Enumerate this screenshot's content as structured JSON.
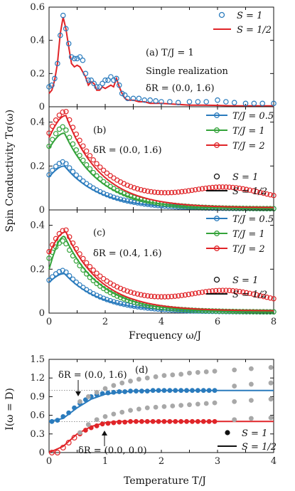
{
  "figure": {
    "ylabel": "Spin Conductivity Tσ(ω)",
    "xlabel_freq": "Frequency ω/J",
    "xlabel_temp": "Temperature T/J",
    "ylabel_d": "I(ω = D)"
  },
  "colors": {
    "blue": "#2a7bbd",
    "green": "#34a33a",
    "red": "#e02428",
    "gray": "#a8a8a8",
    "black": "#111111"
  },
  "chart_data": [
    {
      "id": "a",
      "type": "line",
      "panel_label": "(a)",
      "annotations": [
        "(a) T/J = 1",
        "Single realization",
        "δR = (0.0, 1.6)"
      ],
      "xlim": [
        0,
        8
      ],
      "ylim": [
        0,
        0.6
      ],
      "yticks": [
        0,
        0.2,
        0.4,
        0.6
      ],
      "xticks": [],
      "legend": [
        {
          "label": "S = 1",
          "marker": "circle"
        },
        {
          "label": "S = 1/2",
          "marker": "line"
        }
      ],
      "legend_position": "top-right",
      "series": [
        {
          "name": "S = 1/2",
          "color": "red",
          "style": "line",
          "x": [
            0,
            0.1,
            0.2,
            0.3,
            0.4,
            0.5,
            0.6,
            0.7,
            0.8,
            0.9,
            1.0,
            1.1,
            1.2,
            1.3,
            1.4,
            1.5,
            1.6,
            1.7,
            1.8,
            1.9,
            2.0,
            2.1,
            2.2,
            2.3,
            2.4,
            2.5,
            2.6,
            2.7,
            2.8,
            3.0,
            3.2,
            3.4,
            3.6,
            4.0,
            4.5,
            5.0,
            5.5,
            6.0,
            6.5,
            7.0,
            7.5,
            8.0
          ],
          "y": [
            0.08,
            0.1,
            0.16,
            0.26,
            0.44,
            0.54,
            0.47,
            0.36,
            0.26,
            0.24,
            0.25,
            0.24,
            0.21,
            0.18,
            0.13,
            0.15,
            0.14,
            0.1,
            0.1,
            0.12,
            0.11,
            0.12,
            0.13,
            0.12,
            0.17,
            0.12,
            0.08,
            0.05,
            0.04,
            0.04,
            0.03,
            0.03,
            0.02,
            0.02,
            0.015,
            0.01,
            0.01,
            0.008,
            0.005,
            0.005,
            0.005,
            0.005
          ]
        },
        {
          "name": "S = 1",
          "color": "blue",
          "style": "circles",
          "x": [
            0,
            0.1,
            0.2,
            0.3,
            0.4,
            0.5,
            0.6,
            0.7,
            0.8,
            0.9,
            1.0,
            1.1,
            1.2,
            1.3,
            1.4,
            1.5,
            1.6,
            1.7,
            1.8,
            1.9,
            2.0,
            2.1,
            2.2,
            2.3,
            2.4,
            2.5,
            2.6,
            2.7,
            2.8,
            3.0,
            3.2,
            3.4,
            3.6,
            3.8,
            4.0,
            4.3,
            4.6,
            5.0,
            5.3,
            5.6,
            6.0,
            6.3,
            6.6,
            7.0,
            7.3,
            7.6,
            8.0
          ],
          "y": [
            0.12,
            0.13,
            0.17,
            0.26,
            0.43,
            0.55,
            0.47,
            0.38,
            0.3,
            0.29,
            0.29,
            0.3,
            0.28,
            0.2,
            0.16,
            0.16,
            0.14,
            0.12,
            0.12,
            0.14,
            0.16,
            0.16,
            0.18,
            0.16,
            0.17,
            0.13,
            0.08,
            0.07,
            0.05,
            0.05,
            0.05,
            0.04,
            0.04,
            0.035,
            0.03,
            0.03,
            0.025,
            0.03,
            0.03,
            0.03,
            0.04,
            0.03,
            0.025,
            0.02,
            0.02,
            0.02,
            0.02
          ]
        }
      ]
    },
    {
      "id": "b",
      "type": "line",
      "panel_label": "(b)",
      "annotations": [
        "(b)",
        "δR = (0.0, 1.6)"
      ],
      "xlim": [
        0,
        8
      ],
      "ylim": [
        0,
        0.47
      ],
      "yticks": [
        0,
        0.2,
        0.4
      ],
      "xticks": [],
      "legend": [
        {
          "label": "T/J = 0.5",
          "color": "blue"
        },
        {
          "label": "T/J = 1",
          "color": "green"
        },
        {
          "label": "T/J = 2",
          "color": "red"
        },
        {
          "label": "S = 1",
          "marker": "circle"
        },
        {
          "label": "S = 1/2",
          "marker": "line"
        }
      ],
      "legend_position": "top-right",
      "series": [
        {
          "name": "T/J = 0.5",
          "color": "blue",
          "peak_x": 0.55,
          "y0_line": 0.15,
          "peak_line": 0.2,
          "tail_line": 0.005,
          "y0_pts": 0.16,
          "peak_pts": 0.22,
          "tail_pts": 0.005,
          "hump": 0
        },
        {
          "name": "T/J = 1",
          "color": "green",
          "peak_x": 0.55,
          "y0_line": 0.28,
          "peak_line": 0.35,
          "tail_line": 0.005,
          "y0_pts": 0.29,
          "peak_pts": 0.38,
          "tail_pts": 0.005,
          "hump": 0
        },
        {
          "name": "T/J = 2",
          "color": "red",
          "peak_x": 0.6,
          "y0_line": 0.33,
          "peak_line": 0.43,
          "tail_line": 0.01,
          "y0_pts": 0.35,
          "peak_pts": 0.45,
          "tail_pts": 0.04,
          "hump": 0.06
        }
      ]
    },
    {
      "id": "c",
      "type": "line",
      "panel_label": "(c)",
      "annotations": [
        "(c)",
        "δR = (0.4, 1.6)"
      ],
      "xlim": [
        0,
        8
      ],
      "ylim": [
        0,
        0.47
      ],
      "yticks": [
        0,
        0.2,
        0.4
      ],
      "xticks": [
        0,
        2,
        4,
        6,
        8
      ],
      "legend": [
        {
          "label": "T/J = 0.5",
          "color": "blue"
        },
        {
          "label": "T/J = 1",
          "color": "green"
        },
        {
          "label": "T/J = 2",
          "color": "red"
        },
        {
          "label": "S = 1",
          "marker": "circle"
        },
        {
          "label": "S = 1/2",
          "marker": "line"
        }
      ],
      "legend_position": "top-right",
      "series": [
        {
          "name": "T/J = 0.5",
          "color": "blue",
          "peak_x": 0.55,
          "y0_line": 0.14,
          "peak_line": 0.18,
          "tail_line": 0.005,
          "y0_pts": 0.15,
          "peak_pts": 0.195,
          "tail_pts": 0.005,
          "hump": 0
        },
        {
          "name": "T/J = 1",
          "color": "green",
          "peak_x": 0.55,
          "y0_line": 0.2,
          "peak_line": 0.35,
          "tail_line": 0.005,
          "y0_pts": 0.25,
          "peak_pts": 0.33,
          "tail_pts": 0.005,
          "hump": 0
        },
        {
          "name": "T/J = 2",
          "color": "red",
          "peak_x": 0.6,
          "y0_line": 0.27,
          "peak_line": 0.37,
          "tail_line": 0.01,
          "y0_pts": 0.28,
          "peak_pts": 0.38,
          "tail_pts": 0.04,
          "hump": 0.06
        }
      ]
    },
    {
      "id": "d",
      "type": "scatter",
      "panel_label": "(d)",
      "annotations": [
        "(d)",
        "δR = (0.0, 1.6)",
        "δR = (0.0, 0.0)"
      ],
      "xlim": [
        0,
        4
      ],
      "ylim": [
        0,
        1.5
      ],
      "yticks": [
        0,
        0.3,
        0.6,
        0.9,
        1.2,
        1.5
      ],
      "xticks": [
        0,
        1,
        2,
        3,
        4
      ],
      "reference_lines_y": [
        0.5,
        1.0
      ],
      "legend": [
        {
          "label": "S = 1",
          "marker": "filled-circle"
        },
        {
          "label": "S = 1/2",
          "marker": "line"
        }
      ],
      "legend_position": "bottom-right",
      "series": [
        {
          "name": "S = 1/2",
          "group": "δR = (0.0, 1.6)",
          "color": "blue",
          "style": "line",
          "x": [
            0,
            0.25,
            0.5,
            0.75,
            1.0,
            1.25,
            1.5,
            1.75,
            2.0,
            2.5,
            3.0,
            3.5,
            4.0
          ],
          "y": [
            0.5,
            0.55,
            0.72,
            0.86,
            0.94,
            0.97,
            0.99,
            0.995,
            1.0,
            1.0,
            1.0,
            1.0,
            1.0
          ]
        },
        {
          "name": "S = 1",
          "group": "δR = (0.0, 1.6)",
          "color": "blue",
          "style": "dots",
          "x": [
            0.05,
            0.15,
            0.25,
            0.35,
            0.45,
            0.55,
            0.65,
            0.75,
            0.85,
            0.95,
            1.05,
            1.15,
            1.25,
            1.35,
            1.45,
            1.55,
            1.65,
            1.75,
            1.85,
            1.95,
            2.05,
            2.15,
            2.25,
            2.35,
            2.45,
            2.55,
            2.65,
            2.75,
            2.85,
            2.95
          ],
          "y": [
            0.5,
            0.52,
            0.58,
            0.64,
            0.72,
            0.79,
            0.85,
            0.9,
            0.93,
            0.95,
            0.96,
            0.97,
            0.98,
            0.98,
            0.99,
            0.99,
            0.99,
            0.99,
            1.0,
            1.0,
            1.0,
            1.0,
            1.0,
            1.0,
            1.0,
            1.0,
            1.0,
            1.0,
            1.0,
            1.0
          ]
        },
        {
          "name": "",
          "group": "δR = (0.0, 1.6)",
          "color": "gray",
          "style": "dots",
          "x": [
            0.55,
            0.7,
            0.85,
            1.0,
            1.15,
            1.3,
            1.45,
            1.6,
            1.75,
            1.9,
            2.05,
            2.2,
            2.35,
            2.5,
            2.65,
            2.8,
            2.95,
            3.3,
            3.6,
            3.95
          ],
          "y": [
            0.82,
            0.9,
            0.97,
            1.03,
            1.08,
            1.12,
            1.15,
            1.18,
            1.2,
            1.22,
            1.24,
            1.25,
            1.26,
            1.28,
            1.29,
            1.3,
            1.31,
            1.33,
            1.35,
            1.37
          ]
        },
        {
          "name": "",
          "group": "δR = (0.0, 1.6)",
          "color": "gray",
          "style": "dots",
          "x": [
            3.3,
            3.6,
            3.95
          ],
          "y": [
            1.07,
            1.1,
            1.12
          ]
        },
        {
          "name": "S = 1/2",
          "group": "δR = (0.0, 0.0)",
          "color": "red",
          "style": "line",
          "x": [
            0,
            0.25,
            0.5,
            0.75,
            1.0,
            1.25,
            1.5,
            1.75,
            2.0,
            2.5,
            3.0,
            3.5,
            4.0
          ],
          "y": [
            0.0,
            0.1,
            0.3,
            0.42,
            0.48,
            0.5,
            0.5,
            0.5,
            0.5,
            0.5,
            0.5,
            0.5,
            0.5
          ]
        },
        {
          "name": "S = 1",
          "group": "δR = (0.0, 0.0)",
          "color": "red",
          "style": "dots",
          "x": [
            0.55,
            0.65,
            0.75,
            0.85,
            0.95,
            1.05,
            1.15,
            1.25,
            1.35,
            1.45,
            1.55,
            1.65,
            1.75,
            1.85,
            1.95,
            2.05,
            2.15,
            2.25,
            2.35,
            2.45,
            2.55,
            2.65,
            2.75,
            2.85,
            2.95
          ],
          "y": [
            0.3,
            0.36,
            0.4,
            0.43,
            0.46,
            0.47,
            0.48,
            0.49,
            0.49,
            0.5,
            0.5,
            0.5,
            0.5,
            0.5,
            0.5,
            0.5,
            0.5,
            0.5,
            0.5,
            0.5,
            0.5,
            0.5,
            0.5,
            0.5,
            0.5
          ]
        },
        {
          "name": "",
          "group": "δR = (0.0, 0.0)",
          "color": "red",
          "style": "open-circles",
          "x": [
            0.05,
            0.15,
            0.25,
            0.35,
            0.45
          ],
          "y": [
            0.0,
            0.0,
            0.08,
            0.16,
            0.24
          ]
        },
        {
          "name": "",
          "group": "δR = (0.0, 0.0)",
          "color": "gray",
          "style": "dots",
          "x": [
            0.55,
            0.7,
            0.85,
            1.0,
            1.15,
            1.3,
            1.45,
            1.6,
            1.75,
            1.9,
            2.05,
            2.2,
            2.35,
            2.5,
            2.65,
            2.8,
            2.95,
            3.3,
            3.6,
            3.95
          ],
          "y": [
            0.32,
            0.45,
            0.53,
            0.58,
            0.62,
            0.65,
            0.68,
            0.7,
            0.72,
            0.73,
            0.74,
            0.75,
            0.76,
            0.77,
            0.78,
            0.79,
            0.8,
            0.82,
            0.84,
            0.86
          ]
        },
        {
          "name": "",
          "group": "δR = (0.0, 0.0)",
          "color": "gray",
          "style": "dots",
          "x": [
            3.3,
            3.6,
            3.95
          ],
          "y": [
            0.53,
            0.55,
            0.56
          ]
        }
      ]
    }
  ]
}
